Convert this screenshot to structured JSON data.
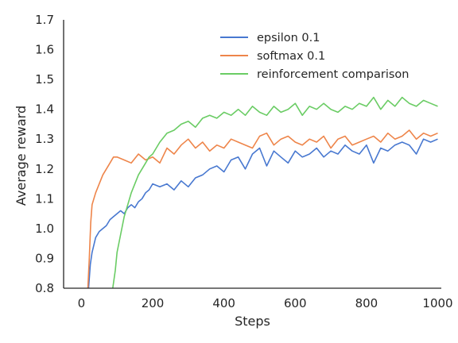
{
  "chart_data": {
    "type": "line",
    "title": "",
    "xlabel": "Steps",
    "ylabel": "Average reward",
    "xlim": [
      -50,
      1010
    ],
    "ylim": [
      0.8,
      1.7
    ],
    "xticks": [
      0,
      200,
      400,
      600,
      800,
      1000
    ],
    "yticks": [
      0.8,
      0.9,
      1.0,
      1.1,
      1.2,
      1.3,
      1.4,
      1.5,
      1.6,
      1.7
    ],
    "xtick_labels": [
      "0",
      "200",
      "400",
      "600",
      "800",
      "1000"
    ],
    "ytick_labels": [
      "0.8",
      "0.9",
      "1.0",
      "1.1",
      "1.2",
      "1.3",
      "1.4",
      "1.5",
      "1.6",
      "1.7"
    ],
    "grid": false,
    "legend_position": "top-right",
    "series": [
      {
        "name": "epsilon 0.1",
        "color": "#4878d0",
        "x": [
          20,
          25,
          30,
          40,
          50,
          60,
          70,
          80,
          90,
          100,
          110,
          120,
          130,
          140,
          150,
          160,
          170,
          180,
          190,
          200,
          220,
          240,
          260,
          280,
          300,
          320,
          340,
          360,
          380,
          400,
          420,
          440,
          460,
          480,
          500,
          520,
          540,
          560,
          580,
          600,
          620,
          640,
          660,
          680,
          700,
          720,
          740,
          760,
          780,
          800,
          820,
          840,
          860,
          880,
          900,
          920,
          940,
          960,
          980,
          1000
        ],
        "y": [
          0.8,
          0.88,
          0.92,
          0.97,
          0.99,
          1.0,
          1.01,
          1.03,
          1.04,
          1.05,
          1.06,
          1.05,
          1.07,
          1.08,
          1.07,
          1.09,
          1.1,
          1.12,
          1.13,
          1.15,
          1.14,
          1.15,
          1.13,
          1.16,
          1.14,
          1.17,
          1.18,
          1.2,
          1.21,
          1.19,
          1.23,
          1.24,
          1.2,
          1.25,
          1.27,
          1.21,
          1.26,
          1.24,
          1.22,
          1.26,
          1.24,
          1.25,
          1.27,
          1.24,
          1.26,
          1.25,
          1.28,
          1.26,
          1.25,
          1.28,
          1.22,
          1.27,
          1.26,
          1.28,
          1.29,
          1.28,
          1.25,
          1.3,
          1.29,
          1.3
        ]
      },
      {
        "name": "softmax 0.1",
        "color": "#ee854a",
        "x": [
          18,
          22,
          26,
          30,
          40,
          50,
          60,
          70,
          80,
          90,
          100,
          120,
          140,
          160,
          180,
          200,
          220,
          240,
          260,
          280,
          300,
          320,
          340,
          360,
          380,
          400,
          420,
          440,
          460,
          480,
          500,
          520,
          540,
          560,
          580,
          600,
          620,
          640,
          660,
          680,
          700,
          720,
          740,
          760,
          780,
          800,
          820,
          840,
          860,
          880,
          900,
          920,
          940,
          960,
          980,
          1000
        ],
        "y": [
          0.8,
          0.9,
          1.02,
          1.08,
          1.12,
          1.15,
          1.18,
          1.2,
          1.22,
          1.24,
          1.24,
          1.23,
          1.22,
          1.25,
          1.23,
          1.24,
          1.22,
          1.27,
          1.25,
          1.28,
          1.3,
          1.27,
          1.29,
          1.26,
          1.28,
          1.27,
          1.3,
          1.29,
          1.28,
          1.27,
          1.31,
          1.32,
          1.28,
          1.3,
          1.31,
          1.29,
          1.28,
          1.3,
          1.29,
          1.31,
          1.27,
          1.3,
          1.31,
          1.28,
          1.29,
          1.3,
          1.31,
          1.29,
          1.32,
          1.3,
          1.31,
          1.33,
          1.3,
          1.32,
          1.31,
          1.32
        ]
      },
      {
        "name": "reinforcement comparison",
        "color": "#6acc64",
        "x": [
          88,
          95,
          100,
          110,
          120,
          130,
          140,
          150,
          160,
          170,
          180,
          190,
          200,
          210,
          220,
          240,
          260,
          280,
          300,
          320,
          340,
          360,
          380,
          400,
          420,
          440,
          460,
          480,
          500,
          520,
          540,
          560,
          580,
          600,
          620,
          640,
          660,
          680,
          700,
          720,
          740,
          760,
          780,
          800,
          820,
          840,
          860,
          880,
          900,
          920,
          940,
          960,
          980,
          1000
        ],
        "y": [
          0.8,
          0.86,
          0.92,
          0.98,
          1.04,
          1.08,
          1.12,
          1.15,
          1.18,
          1.2,
          1.22,
          1.24,
          1.25,
          1.27,
          1.29,
          1.32,
          1.33,
          1.35,
          1.36,
          1.34,
          1.37,
          1.38,
          1.37,
          1.39,
          1.38,
          1.4,
          1.38,
          1.41,
          1.39,
          1.38,
          1.41,
          1.39,
          1.4,
          1.42,
          1.38,
          1.41,
          1.4,
          1.42,
          1.4,
          1.39,
          1.41,
          1.4,
          1.42,
          1.41,
          1.44,
          1.4,
          1.43,
          1.41,
          1.44,
          1.42,
          1.41,
          1.43,
          1.42,
          1.41
        ]
      }
    ]
  }
}
